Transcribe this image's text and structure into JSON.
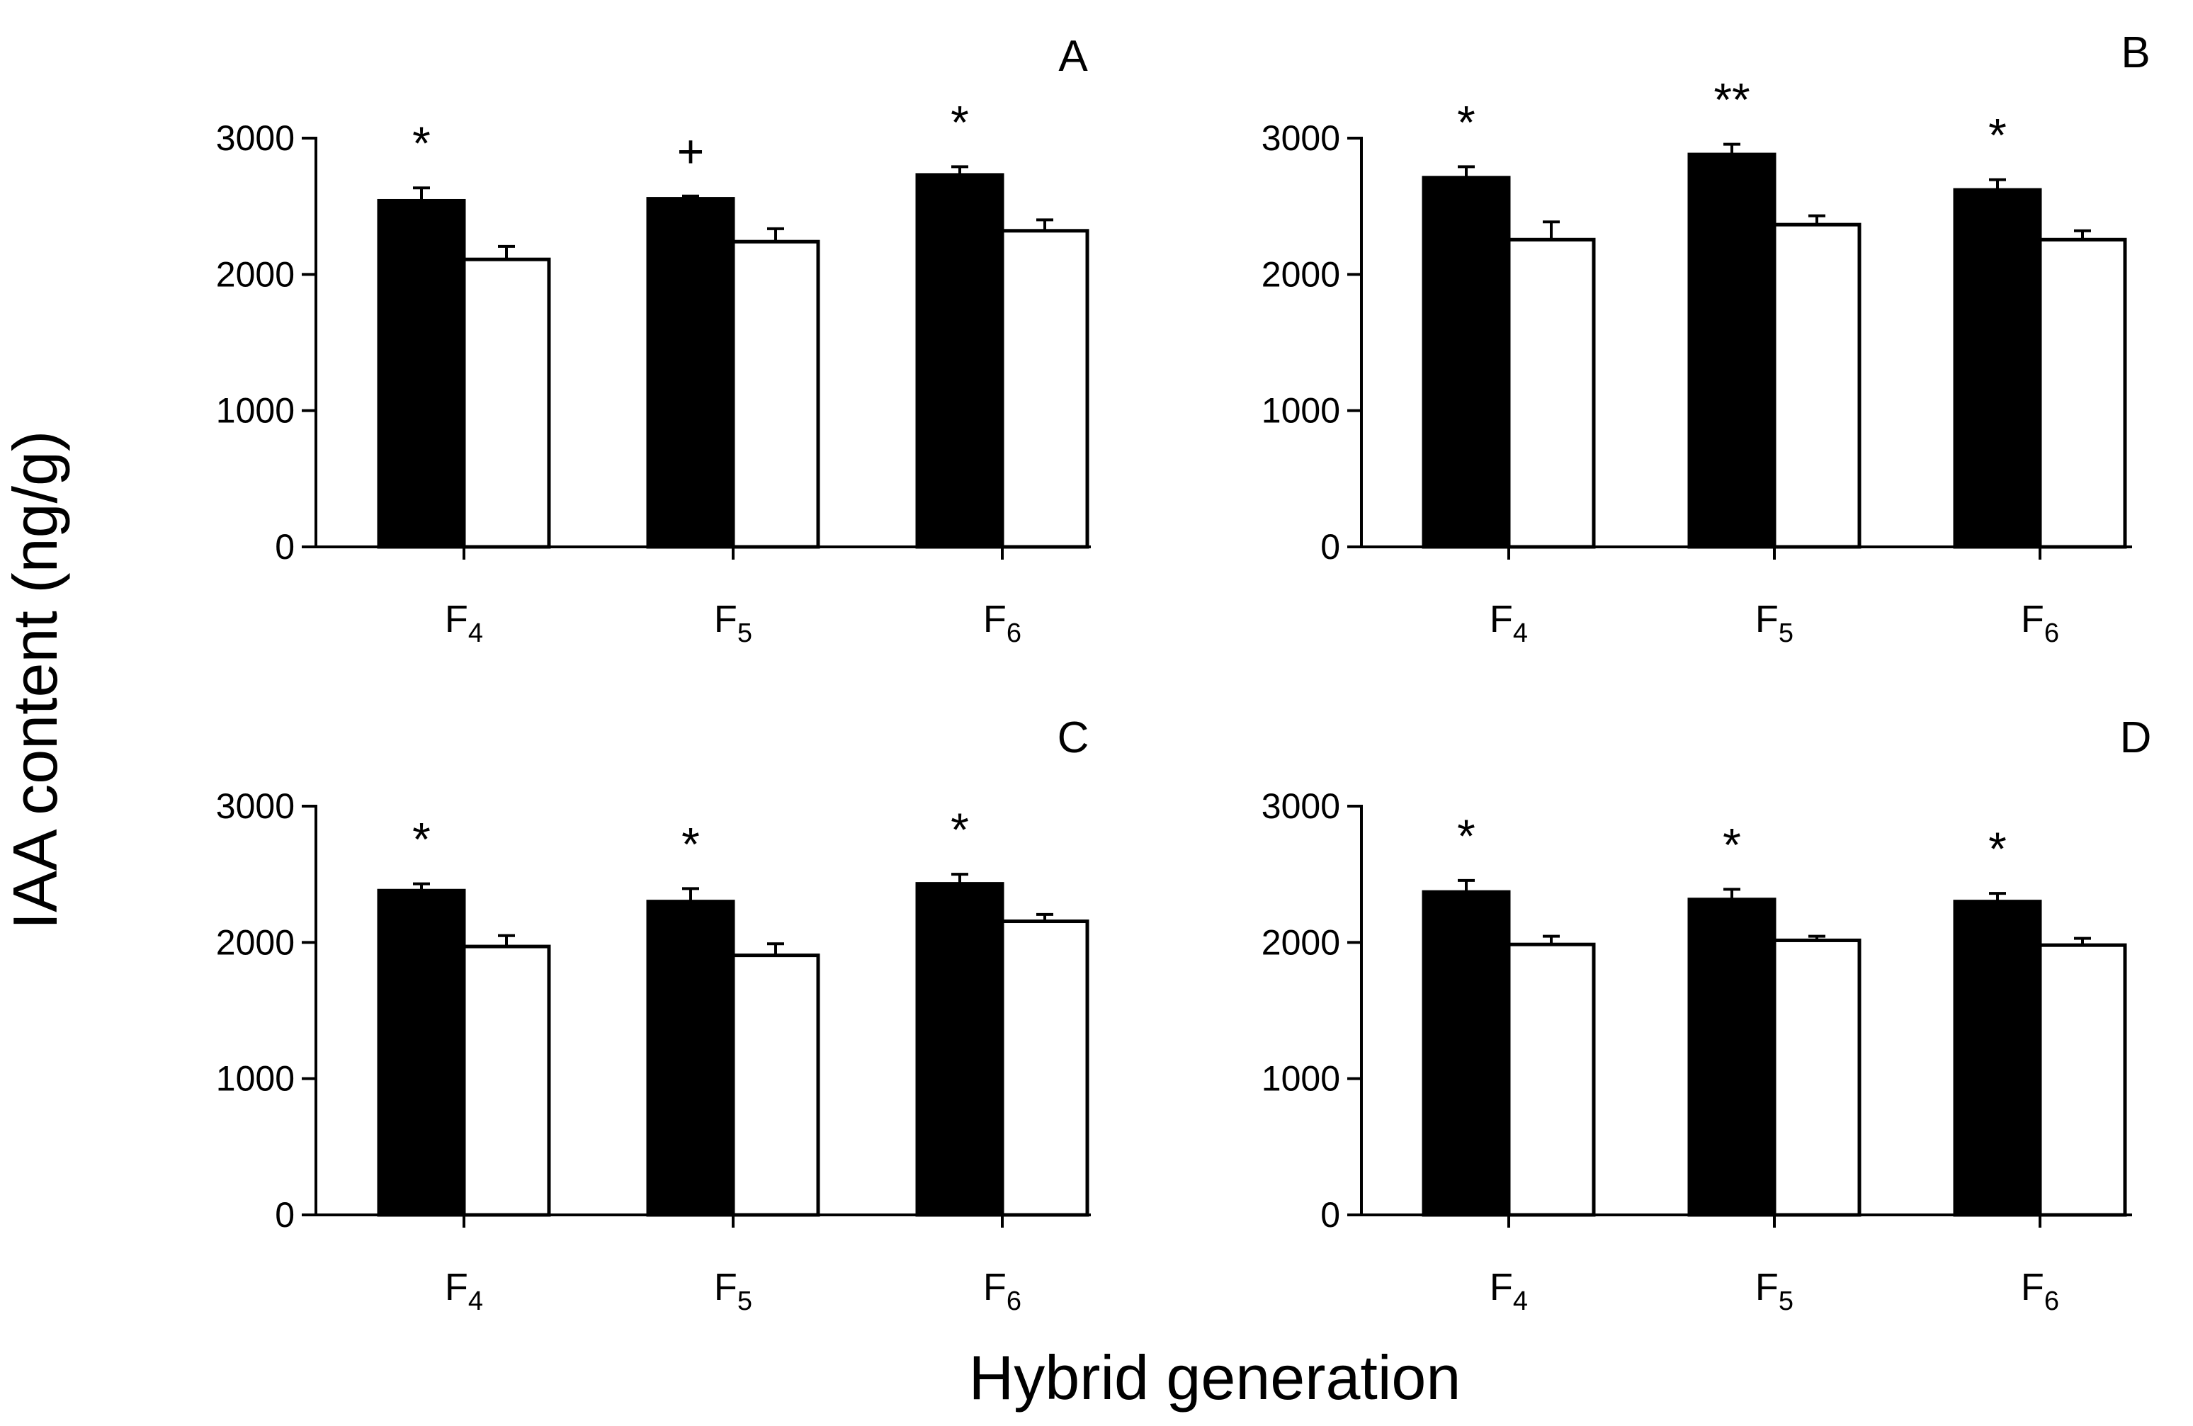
{
  "figure": {
    "ylabel": "IAA content (ng/g)",
    "xlabel": "Hybrid generation"
  },
  "colors": {
    "filled_bar": "#000000",
    "open_bar": "#ffffff",
    "axis": "#000000"
  },
  "chart_data": [
    {
      "type": "bar",
      "panel": "A",
      "categories": [
        {
          "main": "F",
          "sub": "4"
        },
        {
          "main": "F",
          "sub": "5"
        },
        {
          "main": "F",
          "sub": "6"
        }
      ],
      "series": [
        {
          "name": "filled",
          "values": [
            2540,
            2555,
            2730
          ],
          "errors": [
            95,
            20,
            60
          ]
        },
        {
          "name": "open",
          "values": [
            2110,
            2240,
            2320
          ],
          "errors": [
            95,
            95,
            80
          ]
        }
      ],
      "significance": [
        "*",
        "+",
        "*"
      ],
      "ylim": [
        0,
        3000
      ],
      "yticks": [
        0,
        1000,
        2000,
        3000
      ]
    },
    {
      "type": "bar",
      "panel": "B",
      "categories": [
        {
          "main": "F",
          "sub": "4"
        },
        {
          "main": "F",
          "sub": "5"
        },
        {
          "main": "F",
          "sub": "6"
        }
      ],
      "series": [
        {
          "name": "filled",
          "values": [
            2710,
            2880,
            2620
          ],
          "errors": [
            80,
            75,
            75
          ]
        },
        {
          "name": "open",
          "values": [
            2255,
            2365,
            2255
          ],
          "errors": [
            130,
            65,
            65
          ]
        }
      ],
      "significance": [
        "*",
        "**",
        "*"
      ],
      "ylim": [
        0,
        3000
      ],
      "yticks": [
        0,
        1000,
        2000,
        3000
      ]
    },
    {
      "type": "bar",
      "panel": "C",
      "categories": [
        {
          "main": "F",
          "sub": "4"
        },
        {
          "main": "F",
          "sub": "5"
        },
        {
          "main": "F",
          "sub": "6"
        }
      ],
      "series": [
        {
          "name": "filled",
          "values": [
            2380,
            2300,
            2430
          ],
          "errors": [
            50,
            95,
            70
          ]
        },
        {
          "name": "open",
          "values": [
            1970,
            1905,
            2155
          ],
          "errors": [
            80,
            85,
            50
          ]
        }
      ],
      "significance": [
        "*",
        "*",
        "*"
      ],
      "ylim": [
        0,
        3000
      ],
      "yticks": [
        0,
        1000,
        2000,
        3000
      ]
    },
    {
      "type": "bar",
      "panel": "D",
      "categories": [
        {
          "main": "F",
          "sub": "4"
        },
        {
          "main": "F",
          "sub": "5"
        },
        {
          "main": "F",
          "sub": "6"
        }
      ],
      "series": [
        {
          "name": "filled",
          "values": [
            2370,
            2315,
            2300
          ],
          "errors": [
            85,
            75,
            60
          ]
        },
        {
          "name": "open",
          "values": [
            1985,
            2015,
            1980
          ],
          "errors": [
            60,
            30,
            50
          ]
        }
      ],
      "significance": [
        "*",
        "*",
        "*"
      ],
      "ylim": [
        0,
        3000
      ],
      "yticks": [
        0,
        1000,
        2000,
        3000
      ]
    }
  ]
}
